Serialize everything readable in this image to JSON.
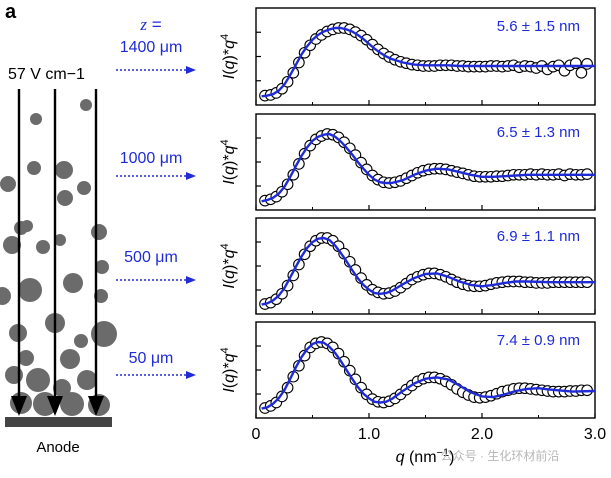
{
  "panel_label": "a",
  "field_label": "57 V cm−1",
  "electrode_label": "Anode",
  "watermark": "公众号 · 生化环材前沿",
  "z_prefix": "z =",
  "colors": {
    "fit": "#1f2bd6",
    "arrow": "#1f2bd6",
    "axis": "#000000",
    "particle": "#6b6b6b",
    "anode": "#444444"
  },
  "chart_data": {
    "type": "scatter",
    "xlabel": "q (nm−1)",
    "ylabel": "I(q)*q4",
    "xlim": [
      0,
      3
    ],
    "x_ticks": [
      0,
      1,
      2,
      3
    ],
    "x_tick_labels": [
      "0",
      "1.0",
      "2.0",
      "3.0"
    ],
    "panels": [
      {
        "height_label": "1400 μm",
        "annotation": "5.6 ± 1.5 nm",
        "series": [
          {
            "name": "measured",
            "style": "open-circles",
            "x": [
              0.08,
              0.13,
              0.18,
              0.23,
              0.28,
              0.33,
              0.38,
              0.43,
              0.48,
              0.53,
              0.58,
              0.63,
              0.68,
              0.73,
              0.78,
              0.83,
              0.88,
              0.93,
              0.98,
              1.03,
              1.08,
              1.13,
              1.18,
              1.23,
              1.28,
              1.33,
              1.38,
              1.43,
              1.48,
              1.53,
              1.58,
              1.63,
              1.68,
              1.73,
              1.78,
              1.83,
              1.88,
              1.93,
              1.98,
              2.03,
              2.08,
              2.13,
              2.18,
              2.23,
              2.28,
              2.33,
              2.38,
              2.43,
              2.48,
              2.53,
              2.58,
              2.63,
              2.68,
              2.73,
              2.78,
              2.83,
              2.88,
              2.93
            ],
            "y": [
              0.02,
              0.03,
              0.06,
              0.12,
              0.22,
              0.35,
              0.5,
              0.64,
              0.75,
              0.84,
              0.9,
              0.95,
              0.98,
              1.0,
              1.0,
              0.98,
              0.94,
              0.89,
              0.83,
              0.76,
              0.69,
              0.63,
              0.58,
              0.54,
              0.51,
              0.49,
              0.47,
              0.46,
              0.45,
              0.45,
              0.45,
              0.46,
              0.46,
              0.46,
              0.45,
              0.45,
              0.44,
              0.44,
              0.44,
              0.44,
              0.45,
              0.45,
              0.44,
              0.45,
              0.46,
              0.43,
              0.45,
              0.44,
              0.42,
              0.45,
              0.4,
              0.44,
              0.46,
              0.38,
              0.46,
              0.49,
              0.35,
              0.48
            ]
          },
          {
            "name": "fit",
            "style": "line",
            "x": [
              0.05,
              0.1,
              0.15,
              0.2,
              0.25,
              0.3,
              0.35,
              0.4,
              0.45,
              0.5,
              0.55,
              0.6,
              0.65,
              0.7,
              0.75,
              0.8,
              0.85,
              0.9,
              0.95,
              1.0,
              1.05,
              1.1,
              1.15,
              1.2,
              1.3,
              1.4,
              1.5,
              1.6,
              1.7,
              1.8,
              1.9,
              2.0,
              2.2,
              2.4,
              2.6,
              2.8,
              3.0
            ],
            "y": [
              0.01,
              0.02,
              0.04,
              0.09,
              0.18,
              0.31,
              0.46,
              0.61,
              0.73,
              0.83,
              0.9,
              0.95,
              0.98,
              1.0,
              1.0,
              0.98,
              0.95,
              0.9,
              0.84,
              0.77,
              0.7,
              0.64,
              0.59,
              0.55,
              0.5,
              0.47,
              0.46,
              0.46,
              0.46,
              0.45,
              0.45,
              0.45,
              0.45,
              0.45,
              0.45,
              0.45,
              0.45
            ]
          }
        ]
      },
      {
        "height_label": "1000 μm",
        "annotation": "6.5 ± 1.3 nm",
        "series": [
          {
            "name": "measured",
            "style": "open-circles",
            "x": [
              0.08,
              0.13,
              0.18,
              0.23,
              0.28,
              0.33,
              0.38,
              0.43,
              0.48,
              0.53,
              0.58,
              0.63,
              0.68,
              0.73,
              0.78,
              0.83,
              0.88,
              0.93,
              0.98,
              1.03,
              1.08,
              1.13,
              1.18,
              1.23,
              1.28,
              1.33,
              1.38,
              1.43,
              1.48,
              1.53,
              1.58,
              1.63,
              1.68,
              1.73,
              1.78,
              1.83,
              1.88,
              1.93,
              1.98,
              2.03,
              2.08,
              2.13,
              2.18,
              2.23,
              2.28,
              2.33,
              2.38,
              2.43,
              2.48,
              2.53,
              2.58,
              2.63,
              2.68,
              2.73,
              2.78,
              2.83,
              2.88,
              2.93
            ],
            "y": [
              0.02,
              0.04,
              0.08,
              0.15,
              0.26,
              0.4,
              0.56,
              0.71,
              0.83,
              0.92,
              0.97,
              1.0,
              0.99,
              0.95,
              0.88,
              0.79,
              0.69,
              0.58,
              0.48,
              0.39,
              0.33,
              0.29,
              0.28,
              0.29,
              0.31,
              0.35,
              0.39,
              0.43,
              0.46,
              0.48,
              0.49,
              0.49,
              0.48,
              0.46,
              0.44,
              0.42,
              0.4,
              0.38,
              0.37,
              0.37,
              0.37,
              0.38,
              0.38,
              0.39,
              0.4,
              0.4,
              0.4,
              0.41,
              0.4,
              0.41,
              0.4,
              0.4,
              0.41,
              0.39,
              0.41,
              0.4,
              0.4,
              0.41
            ]
          },
          {
            "name": "fit",
            "style": "line",
            "x": [
              0.05,
              0.1,
              0.15,
              0.2,
              0.25,
              0.3,
              0.35,
              0.4,
              0.45,
              0.5,
              0.55,
              0.6,
              0.65,
              0.7,
              0.75,
              0.8,
              0.85,
              0.9,
              0.95,
              1.0,
              1.05,
              1.1,
              1.15,
              1.2,
              1.3,
              1.4,
              1.5,
              1.6,
              1.7,
              1.8,
              1.9,
              2.0,
              2.1,
              2.2,
              2.4,
              2.6,
              2.8,
              3.0
            ],
            "y": [
              0.01,
              0.03,
              0.06,
              0.12,
              0.22,
              0.36,
              0.52,
              0.67,
              0.8,
              0.9,
              0.96,
              0.99,
              1.0,
              0.96,
              0.89,
              0.8,
              0.7,
              0.59,
              0.49,
              0.4,
              0.33,
              0.29,
              0.28,
              0.28,
              0.32,
              0.4,
              0.46,
              0.49,
              0.48,
              0.44,
              0.4,
              0.37,
              0.37,
              0.38,
              0.4,
              0.4,
              0.4,
              0.4
            ]
          }
        ]
      },
      {
        "height_label": "500 μm",
        "annotation": "6.9 ± 1.1 nm",
        "series": [
          {
            "name": "measured",
            "style": "open-circles",
            "x": [
              0.08,
              0.13,
              0.18,
              0.23,
              0.28,
              0.33,
              0.38,
              0.43,
              0.48,
              0.53,
              0.58,
              0.63,
              0.68,
              0.73,
              0.78,
              0.83,
              0.88,
              0.93,
              0.98,
              1.03,
              1.08,
              1.13,
              1.18,
              1.23,
              1.28,
              1.33,
              1.38,
              1.43,
              1.48,
              1.53,
              1.58,
              1.63,
              1.68,
              1.73,
              1.78,
              1.83,
              1.88,
              1.93,
              1.98,
              2.03,
              2.08,
              2.13,
              2.18,
              2.23,
              2.28,
              2.33,
              2.38,
              2.43,
              2.48,
              2.53,
              2.58,
              2.63,
              2.68,
              2.73,
              2.78,
              2.83,
              2.88,
              2.93
            ],
            "y": [
              0.03,
              0.05,
              0.1,
              0.18,
              0.3,
              0.45,
              0.61,
              0.76,
              0.88,
              0.96,
              1.0,
              1.0,
              0.96,
              0.88,
              0.77,
              0.65,
              0.53,
              0.41,
              0.31,
              0.24,
              0.2,
              0.18,
              0.19,
              0.22,
              0.27,
              0.33,
              0.39,
              0.43,
              0.46,
              0.48,
              0.48,
              0.46,
              0.43,
              0.39,
              0.35,
              0.32,
              0.3,
              0.29,
              0.29,
              0.3,
              0.32,
              0.34,
              0.35,
              0.36,
              0.36,
              0.36,
              0.35,
              0.35,
              0.34,
              0.34,
              0.34,
              0.35,
              0.35,
              0.35,
              0.35,
              0.35,
              0.35,
              0.35
            ]
          },
          {
            "name": "fit",
            "style": "line",
            "x": [
              0.05,
              0.1,
              0.15,
              0.2,
              0.25,
              0.3,
              0.35,
              0.4,
              0.45,
              0.5,
              0.55,
              0.6,
              0.65,
              0.7,
              0.75,
              0.8,
              0.85,
              0.9,
              0.95,
              1.0,
              1.05,
              1.1,
              1.15,
              1.2,
              1.25,
              1.3,
              1.4,
              1.5,
              1.6,
              1.7,
              1.8,
              1.9,
              2.0,
              2.1,
              2.2,
              2.3,
              2.4,
              2.6,
              2.8,
              3.0
            ],
            "y": [
              0.02,
              0.04,
              0.08,
              0.15,
              0.26,
              0.41,
              0.57,
              0.72,
              0.85,
              0.94,
              0.99,
              1.0,
              0.97,
              0.89,
              0.78,
              0.66,
              0.53,
              0.41,
              0.31,
              0.24,
              0.19,
              0.18,
              0.19,
              0.22,
              0.27,
              0.32,
              0.41,
              0.47,
              0.48,
              0.43,
              0.36,
              0.31,
              0.29,
              0.31,
              0.34,
              0.36,
              0.36,
              0.35,
              0.35,
              0.35
            ]
          }
        ]
      },
      {
        "height_label": "50 μm",
        "annotation": "7.4 ± 0.9 nm",
        "series": [
          {
            "name": "measured",
            "style": "open-circles",
            "x": [
              0.08,
              0.13,
              0.18,
              0.23,
              0.28,
              0.33,
              0.38,
              0.43,
              0.48,
              0.53,
              0.58,
              0.63,
              0.68,
              0.73,
              0.78,
              0.83,
              0.88,
              0.93,
              0.98,
              1.03,
              1.08,
              1.13,
              1.18,
              1.23,
              1.28,
              1.33,
              1.38,
              1.43,
              1.48,
              1.53,
              1.58,
              1.63,
              1.68,
              1.73,
              1.78,
              1.83,
              1.88,
              1.93,
              1.98,
              2.03,
              2.08,
              2.13,
              2.18,
              2.23,
              2.28,
              2.33,
              2.38,
              2.43,
              2.48,
              2.53,
              2.58,
              2.63,
              2.68,
              2.73,
              2.78,
              2.83,
              2.88,
              2.93
            ],
            "y": [
              0.03,
              0.06,
              0.11,
              0.2,
              0.33,
              0.49,
              0.65,
              0.8,
              0.92,
              0.98,
              1.0,
              0.98,
              0.92,
              0.83,
              0.71,
              0.58,
              0.45,
              0.33,
              0.23,
              0.16,
              0.12,
              0.11,
              0.13,
              0.17,
              0.23,
              0.3,
              0.36,
              0.42,
              0.46,
              0.48,
              0.48,
              0.46,
              0.42,
              0.37,
              0.31,
              0.26,
              0.22,
              0.19,
              0.18,
              0.19,
              0.21,
              0.24,
              0.27,
              0.29,
              0.31,
              0.32,
              0.32,
              0.31,
              0.3,
              0.29,
              0.28,
              0.27,
              0.27,
              0.27,
              0.28,
              0.28,
              0.29,
              0.29
            ]
          },
          {
            "name": "fit",
            "style": "line",
            "x": [
              0.05,
              0.1,
              0.15,
              0.2,
              0.25,
              0.3,
              0.35,
              0.4,
              0.45,
              0.5,
              0.55,
              0.6,
              0.65,
              0.7,
              0.75,
              0.8,
              0.85,
              0.9,
              0.95,
              1.0,
              1.05,
              1.1,
              1.15,
              1.2,
              1.25,
              1.3,
              1.4,
              1.5,
              1.6,
              1.7,
              1.8,
              1.9,
              2.0,
              2.1,
              2.2,
              2.3,
              2.4,
              2.5,
              2.6,
              2.8,
              3.0
            ],
            "y": [
              0.02,
              0.04,
              0.09,
              0.17,
              0.29,
              0.45,
              0.62,
              0.77,
              0.89,
              0.97,
              1.0,
              0.99,
              0.93,
              0.84,
              0.72,
              0.59,
              0.46,
              0.34,
              0.24,
              0.17,
              0.12,
              0.11,
              0.12,
              0.16,
              0.22,
              0.28,
              0.39,
              0.46,
              0.48,
              0.45,
              0.36,
              0.26,
              0.2,
              0.19,
              0.23,
              0.28,
              0.31,
              0.32,
              0.3,
              0.27,
              0.28
            ]
          }
        ]
      }
    ]
  }
}
